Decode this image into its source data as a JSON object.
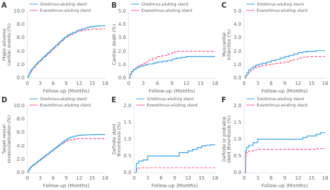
{
  "chart_data": [
    {
      "type": "step",
      "title": "A",
      "xlabel": "Follow-up (Months)",
      "ylabel": "Major adverse cardiac events (%)",
      "xlim": [
        0,
        18
      ],
      "xticks": [
        0,
        3,
        6,
        9,
        12,
        15,
        18
      ],
      "ylim": [
        0,
        10.0
      ],
      "yticks": [
        {
          "value": 0.0,
          "label": "0.0"
        },
        {
          "value": 2.0,
          "label": "2.0"
        },
        {
          "value": 4.0,
          "label": "4.0"
        },
        {
          "value": 6.0,
          "label": "6.0"
        },
        {
          "value": 8.0,
          "label": "8.0"
        },
        {
          "value": 10.0,
          "label": "10.0"
        }
      ],
      "grid": false,
      "legend": "upper left",
      "series": [
        {
          "name": "Sirolimus-eluting stent",
          "line_style": "solid",
          "x": [
            0,
            0.2,
            0.4,
            0.6,
            0.8,
            1.0,
            1.2,
            1.5,
            1.8,
            2.0,
            2.3,
            2.6,
            3.0,
            3.3,
            3.6,
            4.0,
            4.3,
            4.6,
            5.0,
            5.3,
            5.6,
            6.0,
            6.3,
            6.6,
            7.0,
            7.3,
            7.6,
            8.0,
            8.3,
            8.6,
            9.0,
            9.3,
            9.6,
            10.0,
            10.5,
            11.0,
            11.5,
            12.0,
            12.5,
            13.0,
            13.5,
            14.0,
            14.5,
            15.0,
            15.5,
            16.0,
            16.5,
            17.0,
            17.5,
            18.0
          ],
          "values": [
            0,
            0.3,
            0.6,
            0.9,
            1.1,
            1.3,
            1.5,
            1.7,
            1.9,
            2.1,
            2.3,
            2.5,
            2.7,
            2.9,
            3.1,
            3.3,
            3.5,
            3.7,
            3.9,
            4.1,
            4.3,
            4.5,
            4.7,
            4.9,
            5.1,
            5.3,
            5.5,
            5.7,
            5.9,
            6.1,
            6.2,
            6.4,
            6.5,
            6.6,
            6.8,
            6.9,
            7.1,
            7.2,
            7.3,
            7.4,
            7.5,
            7.6,
            7.65,
            7.7,
            7.75,
            7.78,
            7.8,
            7.82,
            7.84,
            7.85
          ]
        },
        {
          "name": "Everolimus-eluting stent",
          "line_style": "dashed",
          "x": [
            0,
            0.2,
            0.4,
            0.6,
            0.8,
            1.0,
            1.2,
            1.5,
            1.8,
            2.0,
            2.3,
            2.6,
            3.0,
            3.3,
            3.6,
            4.0,
            4.3,
            4.6,
            5.0,
            5.3,
            5.6,
            6.0,
            6.3,
            6.6,
            7.0,
            7.3,
            7.6,
            8.0,
            8.3,
            8.6,
            9.0,
            9.3,
            9.6,
            10.0,
            10.5,
            11.0,
            11.5,
            12.0,
            12.5,
            13.0,
            13.5,
            14.0,
            14.5,
            15.0,
            15.5,
            16.0,
            16.5,
            17.0,
            17.5,
            18.0
          ],
          "values": [
            0,
            0.3,
            0.6,
            0.8,
            1.0,
            1.2,
            1.4,
            1.6,
            1.8,
            2.0,
            2.2,
            2.4,
            2.6,
            2.8,
            3.0,
            3.2,
            3.4,
            3.6,
            3.8,
            4.0,
            4.2,
            4.4,
            4.6,
            4.8,
            5.0,
            5.2,
            5.4,
            5.6,
            5.8,
            6.0,
            6.1,
            6.3,
            6.4,
            6.5,
            6.7,
            6.8,
            7.0,
            7.05,
            7.1,
            7.15,
            7.2,
            7.25,
            7.28,
            7.3,
            7.32,
            7.33,
            7.34,
            7.35,
            7.35,
            7.35
          ]
        }
      ]
    },
    {
      "type": "step",
      "title": "B",
      "xlabel": "Follow-up (Months)",
      "ylabel": "Cardiac death (%)",
      "xlim": [
        0,
        18
      ],
      "xticks": [
        0,
        3,
        6,
        9,
        12,
        15,
        18
      ],
      "ylim": [
        0,
        5.0
      ],
      "yticks": [
        {
          "value": 0.0,
          "label": "0.0"
        },
        {
          "value": 1.0,
          "label": "1.0"
        },
        {
          "value": 2.0,
          "label": "2.0"
        },
        {
          "value": 3.0,
          "label": "3.0"
        },
        {
          "value": 4.0,
          "label": "4.0"
        },
        {
          "value": 5.0,
          "label": "5.0"
        }
      ],
      "grid": false,
      "legend": "upper left",
      "series": [
        {
          "name": "Sirolimus-eluting stent",
          "line_style": "solid",
          "x": [
            0,
            0.3,
            0.6,
            1.0,
            1.5,
            2.0,
            2.5,
            3.0,
            3.5,
            4.0,
            5.0,
            5.5,
            6.0,
            7.0,
            8.0,
            9.0,
            9.5,
            10.0,
            11.0,
            12.0,
            13.0,
            14.0,
            15.0,
            16.0,
            17.0,
            18.0
          ],
          "values": [
            0,
            0.3,
            0.5,
            0.65,
            0.75,
            0.85,
            0.9,
            0.95,
            1.0,
            1.05,
            1.1,
            1.15,
            1.2,
            1.25,
            1.3,
            1.4,
            1.45,
            1.5,
            1.55,
            1.6,
            1.6,
            1.6,
            1.6,
            1.6,
            1.6,
            1.6
          ]
        },
        {
          "name": "Everolimus-eluting stent",
          "line_style": "dashed",
          "x": [
            0,
            0.3,
            0.6,
            1.0,
            1.5,
            2.0,
            2.5,
            3.0,
            3.5,
            4.0,
            5.0,
            6.0,
            7.0,
            8.0,
            9.0,
            9.5,
            10.0,
            11.0,
            12.0,
            13.0,
            14.0,
            15.0,
            16.0,
            17.0,
            18.0
          ],
          "values": [
            0,
            0.3,
            0.5,
            0.65,
            0.8,
            0.9,
            1.0,
            1.1,
            1.2,
            1.35,
            1.5,
            1.6,
            1.7,
            1.8,
            1.9,
            1.95,
            2.0,
            2.0,
            2.0,
            2.0,
            2.0,
            2.0,
            2.0,
            2.0,
            2.0
          ]
        }
      ]
    },
    {
      "type": "step",
      "title": "C",
      "xlabel": "Follow-up (Months)",
      "ylabel": "Myocardial infarction (%)",
      "xlim": [
        0,
        18
      ],
      "xticks": [
        0,
        3,
        6,
        9,
        12,
        15,
        18
      ],
      "ylim": [
        0,
        5.0
      ],
      "yticks": [
        {
          "value": 0.0,
          "label": "0.0"
        },
        {
          "value": 1.0,
          "label": "1.0"
        },
        {
          "value": 2.0,
          "label": "2.0"
        },
        {
          "value": 3.0,
          "label": "3.0"
        },
        {
          "value": 4.0,
          "label": "4.0"
        },
        {
          "value": 5.0,
          "label": "5.0"
        }
      ],
      "grid": false,
      "legend": "upper left",
      "series": [
        {
          "name": "Sirolimus-eluting stent",
          "line_style": "solid",
          "x": [
            0,
            0.3,
            0.6,
            1.0,
            1.5,
            2.0,
            2.5,
            3.0,
            3.5,
            4.0,
            5.0,
            6.0,
            7.0,
            8.0,
            9.0,
            10.0,
            11.0,
            12.0,
            13.0,
            14.0,
            15.0,
            16.0,
            17.0,
            18.0
          ],
          "values": [
            0,
            0.2,
            0.4,
            0.6,
            0.75,
            0.85,
            0.95,
            1.0,
            1.05,
            1.1,
            1.2,
            1.3,
            1.4,
            1.5,
            1.6,
            1.7,
            1.8,
            1.9,
            1.95,
            2.0,
            2.0,
            2.05,
            2.05,
            2.1
          ]
        },
        {
          "name": "Everolimus-eluting stent",
          "line_style": "dashed",
          "x": [
            0,
            0.3,
            0.6,
            1.0,
            1.5,
            2.0,
            2.5,
            3.0,
            3.5,
            4.0,
            5.0,
            6.0,
            7.0,
            8.0,
            9.0,
            10.0,
            11.0,
            12.0,
            13.0,
            14.0,
            15.0,
            16.0,
            17.0,
            18.0
          ],
          "values": [
            0,
            0.15,
            0.3,
            0.45,
            0.6,
            0.7,
            0.8,
            0.85,
            0.9,
            0.95,
            1.0,
            1.05,
            1.1,
            1.15,
            1.2,
            1.3,
            1.4,
            1.5,
            1.55,
            1.6,
            1.6,
            1.6,
            1.6,
            1.6
          ]
        }
      ]
    },
    {
      "type": "step",
      "title": "D",
      "xlabel": "Follow-up (Months)",
      "ylabel": "Target vessel revascularization (%)",
      "xlim": [
        0,
        18
      ],
      "xticks": [
        0,
        3,
        6,
        9,
        12,
        15,
        18
      ],
      "ylim": [
        0,
        10.0
      ],
      "yticks": [
        {
          "value": 0.0,
          "label": "0.0"
        },
        {
          "value": 2.0,
          "label": "2.0"
        },
        {
          "value": 4.0,
          "label": "4.0"
        },
        {
          "value": 6.0,
          "label": "6.0"
        },
        {
          "value": 8.0,
          "label": "8.0"
        },
        {
          "value": 10.0,
          "label": "10.0"
        }
      ],
      "grid": false,
      "legend": "upper left",
      "series": [
        {
          "name": "Sirolimus-eluting stent",
          "line_style": "solid",
          "x": [
            0,
            0.2,
            0.4,
            0.6,
            0.8,
            1.0,
            1.3,
            1.6,
            2.0,
            2.3,
            2.6,
            3.0,
            3.3,
            3.6,
            4.0,
            4.3,
            4.6,
            5.0,
            5.3,
            5.6,
            6.0,
            6.3,
            6.6,
            7.0,
            7.3,
            7.6,
            8.0,
            8.3,
            8.6,
            9.0,
            9.3,
            9.6,
            10.0,
            10.5,
            11.0,
            11.5,
            12.0,
            12.5,
            13.0,
            13.5,
            14.0,
            14.5,
            15.0,
            15.5,
            16.0,
            16.5,
            17.0,
            17.5,
            18.0
          ],
          "values": [
            0,
            0.3,
            0.5,
            0.7,
            0.85,
            1.0,
            1.15,
            1.3,
            1.5,
            1.65,
            1.8,
            2.0,
            2.15,
            2.3,
            2.5,
            2.65,
            2.8,
            3.0,
            3.15,
            3.3,
            3.5,
            3.65,
            3.8,
            4.0,
            4.15,
            4.3,
            4.5,
            4.65,
            4.8,
            4.95,
            5.1,
            5.2,
            5.3,
            5.4,
            5.5,
            5.55,
            5.6,
            5.62,
            5.64,
            5.65,
            5.66,
            5.67,
            5.68,
            5.69,
            5.7,
            5.7,
            5.7,
            5.7,
            5.7
          ]
        },
        {
          "name": "Everolimus-eluting stent",
          "line_style": "dashed",
          "x": [
            0,
            0.2,
            0.4,
            0.6,
            0.8,
            1.0,
            1.3,
            1.6,
            2.0,
            2.3,
            2.6,
            3.0,
            3.3,
            3.6,
            4.0,
            4.3,
            4.6,
            5.0,
            5.3,
            5.6,
            6.0,
            6.3,
            6.6,
            7.0,
            7.3,
            7.6,
            8.0,
            8.3,
            8.6,
            9.0,
            9.3,
            9.6,
            10.0,
            10.5,
            11.0,
            11.5,
            12.0,
            12.5,
            13.0,
            13.5,
            14.0,
            14.5,
            15.0,
            15.5,
            16.0,
            16.5,
            17.0,
            17.5,
            18.0
          ],
          "values": [
            0,
            0.25,
            0.45,
            0.65,
            0.8,
            0.95,
            1.1,
            1.25,
            1.45,
            1.6,
            1.75,
            1.95,
            2.1,
            2.25,
            2.45,
            2.6,
            2.75,
            2.95,
            3.1,
            3.25,
            3.45,
            3.6,
            3.75,
            3.9,
            4.05,
            4.2,
            4.35,
            4.5,
            4.6,
            4.7,
            4.8,
            4.9,
            4.95,
            5.0,
            5.05,
            5.07,
            5.08,
            5.09,
            5.1,
            5.1,
            5.1,
            5.1,
            5.1,
            5.1,
            5.1,
            5.1,
            5.1,
            5.1,
            5.1
          ]
        }
      ]
    },
    {
      "type": "step",
      "title": "E",
      "xlabel": "Follow-up (Months)",
      "ylabel": "Definite stent thrombosis (%)",
      "xlim": [
        0,
        18
      ],
      "xticks": [
        0,
        3,
        6,
        9,
        12,
        15,
        18
      ],
      "ylim": [
        0,
        2.0
      ],
      "yticks": [
        {
          "value": 0.0,
          "label": "0.0"
        },
        {
          "value": 0.5,
          "label": "0.5"
        },
        {
          "value": 1.0,
          "label": "1.0"
        },
        {
          "value": 1.5,
          "label": "1.5"
        },
        {
          "value": 2.0,
          "label": "2.0"
        }
      ],
      "grid": false,
      "legend": "upper left",
      "series": [
        {
          "name": "Sirolimus-eluting stent",
          "line_style": "solid",
          "x": [
            0,
            0.5,
            1.0,
            2.0,
            3.0,
            4.0,
            5.0,
            6.0,
            7.0,
            8.0,
            9.0,
            10.0,
            12.0,
            13.0,
            14.0,
            15.0,
            16.0,
            17.0,
            18.0
          ],
          "values": [
            0,
            0.28,
            0.35,
            0.38,
            0.5,
            0.5,
            0.5,
            0.5,
            0.5,
            0.5,
            0.5,
            0.6,
            0.65,
            0.7,
            0.75,
            0.8,
            0.82,
            0.84,
            0.85
          ]
        },
        {
          "name": "Everolimus-eluting stent",
          "line_style": "dashed",
          "x": [
            0,
            0.5,
            1.0,
            2.0,
            3.0,
            18.0
          ],
          "values": [
            0,
            0.12,
            0.15,
            0.15,
            0.15,
            0.15
          ]
        }
      ]
    },
    {
      "type": "step",
      "title": "F",
      "xlabel": "Follow-up (Months)",
      "ylabel": "Definite or probable stent thrombosis (%)",
      "xlim": [
        0,
        18
      ],
      "xticks": [
        0,
        3,
        6,
        9,
        12,
        15,
        18
      ],
      "ylim": [
        0,
        2.0
      ],
      "yticks": [
        {
          "value": 0.0,
          "label": "0.0"
        },
        {
          "value": 0.5,
          "label": "0.5"
        },
        {
          "value": 1.0,
          "label": "1.0"
        },
        {
          "value": 1.5,
          "label": "1.5"
        },
        {
          "value": 2.0,
          "label": "2.0"
        }
      ],
      "grid": false,
      "legend": "upper left",
      "series": [
        {
          "name": "Sirolimus-eluting stent",
          "line_style": "solid",
          "x": [
            0,
            0.3,
            0.5,
            1.0,
            2.0,
            3.0,
            4.0,
            5.0,
            6.0,
            7.0,
            8.0,
            9.0,
            10.0,
            11.0,
            12.0,
            13.0,
            14.0,
            15.0,
            16.0,
            17.0,
            18.0
          ],
          "values": [
            0,
            0.65,
            0.75,
            0.82,
            0.9,
            1.0,
            1.0,
            1.0,
            1.0,
            1.0,
            1.0,
            1.0,
            1.0,
            1.0,
            1.0,
            1.05,
            1.1,
            1.1,
            1.15,
            1.2,
            1.2
          ]
        },
        {
          "name": "Everolimus-eluting stent",
          "line_style": "dashed",
          "x": [
            0,
            0.3,
            0.5,
            1.0,
            2.0,
            3.0,
            12.0,
            13.0,
            14.0,
            15.0,
            16.0,
            17.0,
            18.0
          ],
          "values": [
            0,
            0.5,
            0.6,
            0.65,
            0.68,
            0.7,
            0.7,
            0.7,
            0.7,
            0.7,
            0.72,
            0.72,
            0.72
          ]
        }
      ]
    }
  ]
}
